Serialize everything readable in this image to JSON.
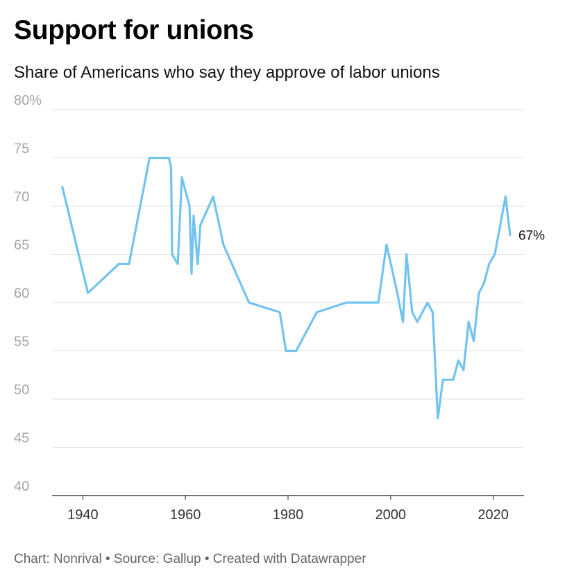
{
  "header": {
    "title": "Support for unions",
    "subtitle": "Share of Americans who say they approve of labor unions"
  },
  "footer": {
    "text": "Chart: Nonrival • Source: Gallup • Created with Datawrapper"
  },
  "colors": {
    "line": "#72c3f0",
    "grid": "#e1e1e1",
    "axis": "#222222"
  },
  "chart_data": {
    "type": "line",
    "title": "Support for unions",
    "subtitle": "Share of Americans who say they approve of labor unions",
    "xlabel": "",
    "ylabel": "",
    "xlim": [
      1934,
      2026
    ],
    "ylim": [
      40,
      80
    ],
    "x_ticks": [
      1940,
      1960,
      1980,
      2000,
      2020
    ],
    "y_ticks": [
      40,
      45,
      50,
      55,
      60,
      65,
      70,
      75,
      80
    ],
    "y_tick_labels": [
      "40",
      "45",
      "50",
      "55",
      "60",
      "65",
      "70",
      "75",
      "80%"
    ],
    "grid": true,
    "end_label": "67%",
    "series": [
      {
        "x": [
          1936,
          1941,
          1947,
          1949,
          1953,
          1956.8,
          1957.2,
          1957.4,
          1958.5,
          1959.3,
          1960.8,
          1961.2,
          1961.6,
          1962.4,
          1962.9,
          1965.4,
          1967.4,
          1972.4,
          1978.4,
          1979.6,
          1981.6,
          1985.6,
          1991.4,
          1997.6,
          1999.2,
          2001.3,
          2002.4,
          2003.1,
          2004.2,
          2005.2,
          2007.2,
          2008.2,
          2009.2,
          2010.2,
          2012.2,
          2013.2,
          2014.2,
          2015.2,
          2016.2,
          2017.2,
          2018.2,
          2019.2,
          2020.3,
          2022.4,
          2023.3
        ],
        "y": [
          72,
          61,
          64,
          64,
          75,
          75,
          74,
          65,
          64,
          73,
          70,
          63,
          69,
          64,
          68,
          71,
          66,
          60,
          59,
          55,
          55,
          59,
          60,
          60,
          66,
          61,
          58,
          65,
          59,
          58,
          60,
          59,
          48,
          52,
          52,
          54,
          53,
          58,
          56,
          61,
          62,
          64,
          65,
          71,
          67
        ]
      }
    ]
  }
}
